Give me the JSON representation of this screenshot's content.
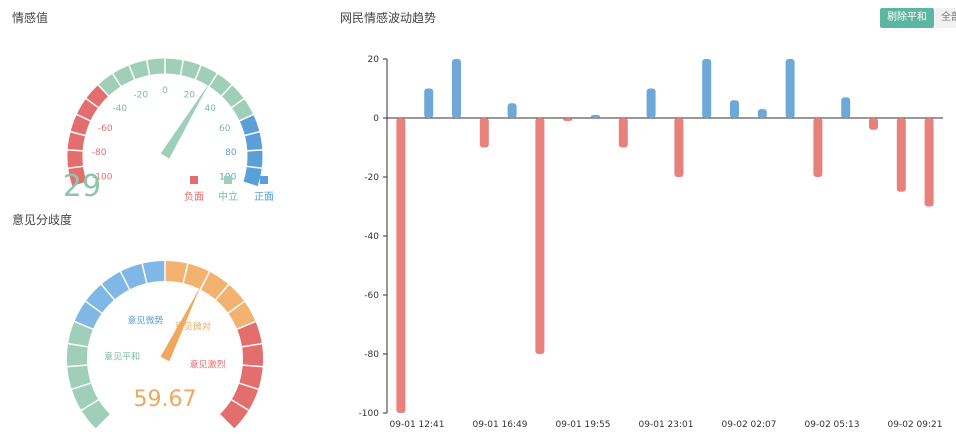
{
  "sentiment_panel": {
    "title": "情感值",
    "gauge_ticks": [
      "-100",
      "-80",
      "-60",
      "-40",
      "-20",
      "0",
      "20",
      "40",
      "60",
      "80",
      "100"
    ],
    "value": "29",
    "pointer_value": 29,
    "legend": [
      {
        "label": "负面",
        "color": "#e46d6d"
      },
      {
        "label": "中立",
        "color": "#9fcfb8"
      },
      {
        "label": "正面",
        "color": "#5a9fd8"
      }
    ]
  },
  "divergence_panel": {
    "title": "意见分歧度",
    "segments": [
      {
        "label": "意见平和",
        "color": "#9fcfb8"
      },
      {
        "label": "意见微势",
        "color": "#7fb7e6"
      },
      {
        "label": "意见微对",
        "color": "#f3b270"
      },
      {
        "label": "意见激烈",
        "color": "#e46d6d"
      }
    ],
    "value": "59.67",
    "pointer_value": 59.67
  },
  "trend_panel": {
    "title": "网民情感波动趋势",
    "buttons": {
      "primary": "剔除平和",
      "secondary": "全部"
    }
  },
  "colors": {
    "negative": "#e8817b",
    "positive": "#6ea8d8",
    "neutral": "#9fcfb8",
    "accent": "#5bb7a0"
  },
  "chart_data": {
    "type": "bar",
    "title": "网民情感波动趋势",
    "x_ticks": [
      "09-01 12:41",
      "09-01 16:49",
      "09-01 19:55",
      "09-01 23:01",
      "09-02 02:07",
      "09-02 05:13",
      "09-02 09:21"
    ],
    "y_ticks": [
      "20",
      "0",
      "-20",
      "-40",
      "-60",
      "-80",
      "-100"
    ],
    "ylim": [
      -100,
      20
    ],
    "grid": false,
    "values": [
      -100,
      10,
      20,
      -10,
      5,
      -80,
      -1,
      1,
      -10,
      10,
      -20,
      20,
      6,
      3,
      20,
      -20,
      7,
      -4,
      -25,
      -30
    ]
  }
}
